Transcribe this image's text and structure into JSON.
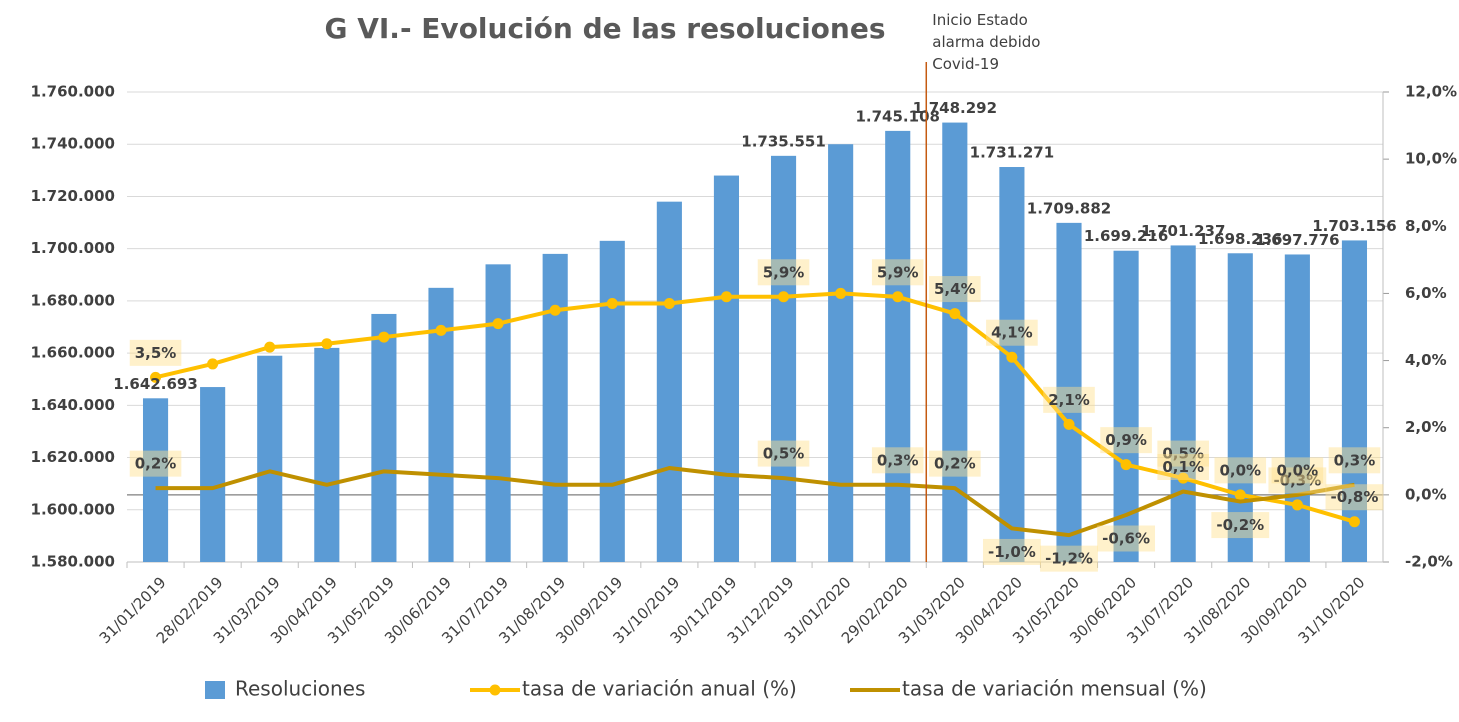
{
  "chart_data": {
    "type": "bar-line",
    "title": "G VI.- Evolución de las resoluciones",
    "annotation": "Inicio Estado alarma debido Covid-19",
    "annotation_category": 14,
    "categories": [
      "31/01/2019",
      "28/02/2019",
      "31/03/2019",
      "30/04/2019",
      "31/05/2019",
      "30/06/2019",
      "31/07/2019",
      "31/08/2019",
      "30/09/2019",
      "31/10/2019",
      "30/11/2019",
      "31/12/2019",
      "31/01/2020",
      "29/02/2020",
      "31/03/2020",
      "30/04/2020",
      "31/05/2020",
      "30/06/2020",
      "31/07/2020",
      "31/08/2020",
      "30/09/2020",
      "31/10/2020"
    ],
    "ylim": [
      1580000,
      1760000
    ],
    "yticks": [
      {
        "value": 1580000,
        "label": "1.580.000"
      },
      {
        "value": 1600000,
        "label": "1.600.000"
      },
      {
        "value": 1620000,
        "label": "1.620.000"
      },
      {
        "value": 1640000,
        "label": "1.640.000"
      },
      {
        "value": 1660000,
        "label": "1.660.000"
      },
      {
        "value": 1680000,
        "label": "1.680.000"
      },
      {
        "value": 1700000,
        "label": "1.700.000"
      },
      {
        "value": 1720000,
        "label": "1.720.000"
      },
      {
        "value": 1740000,
        "label": "1.740.000"
      },
      {
        "value": 1760000,
        "label": "1.760.000"
      }
    ],
    "y2lim": [
      -2,
      12
    ],
    "y2ticks": [
      {
        "value": -2,
        "label": "-2,0%"
      },
      {
        "value": 0,
        "label": "0,0%"
      },
      {
        "value": 2,
        "label": "2,0%"
      },
      {
        "value": 4,
        "label": "4,0%"
      },
      {
        "value": 6,
        "label": "6,0%"
      },
      {
        "value": 8,
        "label": "8,0%"
      },
      {
        "value": 10,
        "label": "10,0%"
      },
      {
        "value": 12,
        "label": "12,0%"
      }
    ],
    "grid": true,
    "legend": "bottom",
    "series": [
      {
        "name": "Resoluciones",
        "type": "bar",
        "color": "#5b9bd5",
        "values": [
          1642693,
          1647000,
          1659000,
          1662000,
          1675000,
          1685000,
          1694000,
          1698000,
          1703000,
          1718000,
          1728000,
          1735551,
          1740000,
          1745108,
          1748292,
          1731271,
          1709882,
          1699216,
          1701237,
          1698236,
          1697776,
          1703156
        ],
        "value_labels": [
          "1.642.693",
          null,
          null,
          null,
          null,
          null,
          null,
          null,
          null,
          null,
          null,
          "1.735.551",
          null,
          "1.745.108",
          "1.748.292",
          "1.731.271",
          "1.709.882",
          "1.699.216",
          "1.701.237",
          "1.698.236",
          "1.697.776",
          "1.703.156"
        ]
      },
      {
        "name": "tasa de variación anual (%)",
        "type": "line",
        "axis": "y2",
        "color": "#ffc000",
        "markers": true,
        "values": [
          3.5,
          3.9,
          4.4,
          4.5,
          4.7,
          4.9,
          5.1,
          5.5,
          5.7,
          5.7,
          5.9,
          5.9,
          6.0,
          5.9,
          5.4,
          4.1,
          2.1,
          0.9,
          0.5,
          0.0,
          -0.3,
          -0.8
        ],
        "value_labels": [
          "3,5%",
          null,
          null,
          null,
          null,
          null,
          null,
          null,
          null,
          null,
          null,
          "5,9%",
          null,
          "5,9%",
          "5,4%",
          "4,1%",
          "2,1%",
          "0,9%",
          "0,5%",
          "0,0%",
          "-0,3%",
          "-0,8%"
        ]
      },
      {
        "name": "tasa de variación mensual (%)",
        "type": "line",
        "axis": "y2",
        "color": "#bf9000",
        "markers": false,
        "values": [
          0.2,
          0.2,
          0.7,
          0.3,
          0.7,
          0.6,
          0.5,
          0.3,
          0.3,
          0.8,
          0.6,
          0.5,
          0.3,
          0.3,
          0.2,
          -1.0,
          -1.2,
          -0.6,
          0.1,
          -0.2,
          0.0,
          0.3
        ],
        "value_labels": [
          "0,2%",
          null,
          null,
          null,
          null,
          null,
          null,
          null,
          null,
          null,
          null,
          "0,5%",
          null,
          "0,3%",
          "0,2%",
          "-1,0%",
          "-1,2%",
          "-0,6%",
          "0,1%",
          "-0,2%",
          "0,0%",
          "0,3%"
        ]
      }
    ]
  }
}
